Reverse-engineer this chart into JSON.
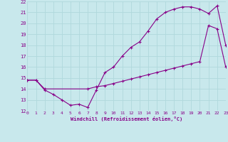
{
  "line1_x": [
    0,
    1,
    2,
    3,
    4,
    5,
    6,
    7,
    8,
    9,
    10,
    11,
    12,
    13,
    14,
    15,
    16,
    17,
    18,
    19,
    20,
    21,
    22,
    23
  ],
  "line1_y": [
    14.8,
    14.8,
    13.9,
    13.5,
    13.0,
    12.5,
    12.6,
    12.3,
    13.9,
    15.5,
    16.0,
    17.0,
    17.8,
    18.3,
    19.3,
    20.4,
    21.0,
    21.3,
    21.5,
    21.5,
    21.3,
    20.9,
    21.6,
    18.0
  ],
  "line2_x": [
    0,
    1,
    2,
    7,
    8,
    9,
    10,
    11,
    12,
    13,
    14,
    15,
    16,
    17,
    18,
    19,
    20,
    21,
    22,
    23
  ],
  "line2_y": [
    14.8,
    14.8,
    14.0,
    14.0,
    14.2,
    14.3,
    14.5,
    14.7,
    14.9,
    15.1,
    15.3,
    15.5,
    15.7,
    15.9,
    16.1,
    16.3,
    16.5,
    19.8,
    19.5,
    16.0
  ],
  "line_color": "#880088",
  "bg_color": "#c8e8ec",
  "grid_color": "#aacccc",
  "xlabel": "Windchill (Refroidissement éolien,°C)",
  "ylim": [
    12,
    22
  ],
  "xlim": [
    0,
    23
  ],
  "yticks": [
    12,
    13,
    14,
    15,
    16,
    17,
    18,
    19,
    20,
    21,
    22
  ],
  "xticks": [
    0,
    1,
    2,
    3,
    4,
    5,
    6,
    7,
    8,
    9,
    10,
    11,
    12,
    13,
    14,
    15,
    16,
    17,
    18,
    19,
    20,
    21,
    22,
    23
  ]
}
